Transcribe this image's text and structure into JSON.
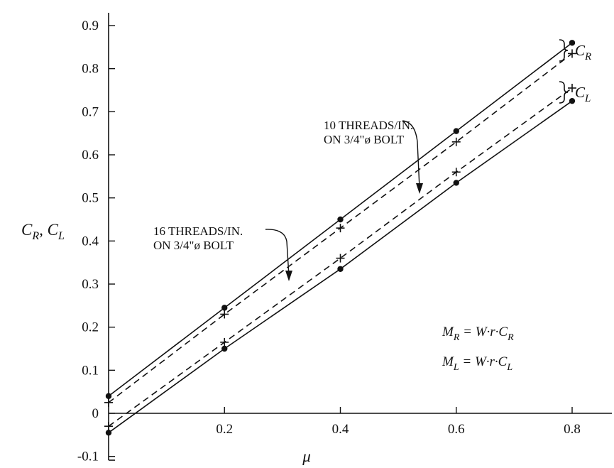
{
  "chart_data": {
    "type": "line",
    "xlabel": "μ",
    "ylabel": "C_R, C_L",
    "xlim": [
      0,
      0.9
    ],
    "ylim": [
      -0.1,
      0.95
    ],
    "x_ticks": [
      "0.2",
      "0.4",
      "0.6",
      "0.8"
    ],
    "x_tick_values": [
      0.2,
      0.4,
      0.6,
      0.8
    ],
    "y_ticks": [
      "-0.1",
      "0",
      "0.1",
      "0.2",
      "0.3",
      "0.4",
      "0.5",
      "0.6",
      "0.7",
      "0.8",
      "0.9"
    ],
    "y_tick_values": [
      -0.1,
      0,
      0.1,
      0.2,
      0.3,
      0.4,
      0.5,
      0.6,
      0.7,
      0.8,
      0.9
    ],
    "grid": false,
    "series": [
      {
        "group": "C_R",
        "threads": 10,
        "line_style": "solid",
        "marker": "dot",
        "x": [
          0,
          0.2,
          0.4,
          0.6,
          0.8
        ],
        "y": [
          0.04,
          0.245,
          0.45,
          0.655,
          0.86
        ]
      },
      {
        "group": "C_R",
        "threads": 16,
        "line_style": "dashed",
        "marker": "plus",
        "x": [
          0,
          0.2,
          0.4,
          0.6,
          0.8
        ],
        "y": [
          0.025,
          0.23,
          0.43,
          0.63,
          0.835
        ]
      },
      {
        "group": "C_L",
        "threads": 16,
        "line_style": "dashed",
        "marker": "plus",
        "x": [
          0,
          0.2,
          0.4,
          0.6,
          0.8
        ],
        "y": [
          -0.03,
          0.165,
          0.36,
          0.56,
          0.755
        ]
      },
      {
        "group": "C_L",
        "threads": 10,
        "line_style": "solid",
        "marker": "dot",
        "x": [
          0,
          0.2,
          0.4,
          0.6,
          0.8
        ],
        "y": [
          -0.045,
          0.15,
          0.335,
          0.535,
          0.725
        ]
      }
    ],
    "legend": [
      {
        "label_main": "C",
        "label_sub": "R",
        "placement": "right"
      },
      {
        "label_main": "C",
        "label_sub": "L",
        "placement": "right"
      }
    ],
    "annotations": [
      {
        "lines": [
          "10 THREADS/IN.",
          "ON 3/4\"ø BOLT"
        ],
        "targets_threads": 10
      },
      {
        "lines": [
          "16 THREADS/IN.",
          "ON 3/4\"ø BOLT"
        ],
        "targets_threads": 16
      }
    ],
    "equations": [
      {
        "lhs": "M",
        "lhs_sub": "R",
        "rhs": " = W·r·C",
        "rhs_sub": "R"
      },
      {
        "lhs": "M",
        "lhs_sub": "L",
        "rhs": " = W·r·C",
        "rhs_sub": "L"
      }
    ],
    "colors": {
      "ink": "#111111",
      "background": "#ffffff"
    }
  }
}
